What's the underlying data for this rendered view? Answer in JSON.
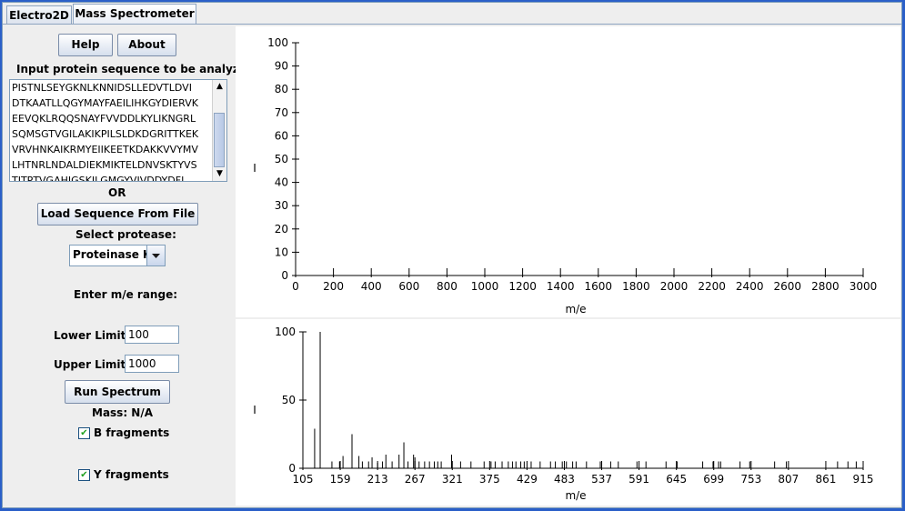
{
  "tabs": [
    {
      "label": "Electro2D",
      "active": false
    },
    {
      "label": "Mass Spectrometer",
      "active": true
    }
  ],
  "controls": {
    "help_label": "Help",
    "about_label": "About",
    "input_prompt": "Input protein sequence to be analyzed:",
    "sequence_lines": [
      "PISTNLSEYGKNLKNNIDSLLEDVTLDVI",
      "DTKAATLLQGYMAYFAEILIHKGYDIERVK",
      "EEVQKLRQQSNAYFVVDDLKYLIKNGRL",
      "SQMSGTVGILAKIKPILSLDKDGRITTKEK",
      "VRVHNKAIKRMYEIIKEETKDAKKVVYMV",
      "LHTNRLNDALDIEKMIKTELDNVSKTYVS",
      "TITPTVGAHIGSKILGMGYVIVDDYDFL"
    ],
    "or_label": "OR",
    "load_label": "Load Sequence From File",
    "protease_label": "Select protease:",
    "protease_value": "Proteinase K",
    "range_label": "Enter m/e range:",
    "lower_label": "Lower Limit:",
    "lower_value": "100",
    "upper_label": "Upper Limit:",
    "upper_value": "1000",
    "run_label": "Run Spectrum",
    "mass_label": "Mass: N/A",
    "b_label": "B fragments",
    "b_checked": true,
    "y_label": "Y fragments",
    "y_checked": true
  },
  "chart_data": [
    {
      "type": "bar",
      "title": "",
      "xlabel": "m/e",
      "ylabel": "I",
      "xlim": [
        0,
        3000
      ],
      "ylim": [
        0,
        100
      ],
      "x_ticks": [
        "0",
        "200",
        "400",
        "600",
        "800",
        "1000",
        "1200",
        "1400",
        "1600",
        "1800",
        "2000",
        "2200",
        "2400",
        "2600",
        "2800",
        "3000"
      ],
      "y_ticks": [
        "0",
        "10",
        "20",
        "30",
        "40",
        "50",
        "60",
        "70",
        "80",
        "90",
        "100"
      ],
      "peaks": []
    },
    {
      "type": "bar",
      "title": "",
      "xlabel": "m/e",
      "ylabel": "I",
      "xlim": [
        105,
        915
      ],
      "ylim": [
        0,
        100
      ],
      "x_ticks": [
        "105",
        "159",
        "213",
        "267",
        "321",
        "375",
        "429",
        "483",
        "537",
        "591",
        "645",
        "699",
        "753",
        "807",
        "861",
        "915"
      ],
      "y_ticks": [
        "0",
        "50",
        "100"
      ],
      "peaks": [
        {
          "x": 122,
          "y": 29
        },
        {
          "x": 130,
          "y": 100
        },
        {
          "x": 147,
          "y": 5
        },
        {
          "x": 158,
          "y": 5
        },
        {
          "x": 163,
          "y": 9
        },
        {
          "x": 176,
          "y": 25
        },
        {
          "x": 186,
          "y": 9
        },
        {
          "x": 191,
          "y": 5
        },
        {
          "x": 200,
          "y": 5
        },
        {
          "x": 205,
          "y": 8
        },
        {
          "x": 213,
          "y": 4
        },
        {
          "x": 220,
          "y": 5
        },
        {
          "x": 225,
          "y": 10
        },
        {
          "x": 234,
          "y": 5
        },
        {
          "x": 244,
          "y": 10
        },
        {
          "x": 251,
          "y": 19
        },
        {
          "x": 257,
          "y": 5
        },
        {
          "x": 265,
          "y": 10
        },
        {
          "x": 267,
          "y": 8
        },
        {
          "x": 273,
          "y": 5
        },
        {
          "x": 281,
          "y": 5
        },
        {
          "x": 288,
          "y": 5
        },
        {
          "x": 295,
          "y": 5
        },
        {
          "x": 300,
          "y": 5
        },
        {
          "x": 305,
          "y": 5
        },
        {
          "x": 320,
          "y": 10
        },
        {
          "x": 333,
          "y": 5
        },
        {
          "x": 348,
          "y": 5
        },
        {
          "x": 367,
          "y": 5
        },
        {
          "x": 377,
          "y": 5
        },
        {
          "x": 383,
          "y": 5
        },
        {
          "x": 393,
          "y": 5
        },
        {
          "x": 402,
          "y": 5
        },
        {
          "x": 408,
          "y": 5
        },
        {
          "x": 413,
          "y": 5
        },
        {
          "x": 420,
          "y": 5
        },
        {
          "x": 425,
          "y": 5
        },
        {
          "x": 435,
          "y": 5
        },
        {
          "x": 448,
          "y": 5
        },
        {
          "x": 463,
          "y": 5
        },
        {
          "x": 470,
          "y": 5
        },
        {
          "x": 480,
          "y": 5
        },
        {
          "x": 486,
          "y": 5
        },
        {
          "x": 495,
          "y": 5
        },
        {
          "x": 500,
          "y": 5
        },
        {
          "x": 515,
          "y": 5
        },
        {
          "x": 535,
          "y": 5
        },
        {
          "x": 550,
          "y": 5
        },
        {
          "x": 561,
          "y": 5
        },
        {
          "x": 588,
          "y": 5
        },
        {
          "x": 601,
          "y": 5
        },
        {
          "x": 630,
          "y": 5
        },
        {
          "x": 646,
          "y": 5
        },
        {
          "x": 683,
          "y": 5
        },
        {
          "x": 698,
          "y": 5
        },
        {
          "x": 706,
          "y": 5
        },
        {
          "x": 709,
          "y": 5
        },
        {
          "x": 737,
          "y": 5
        },
        {
          "x": 751,
          "y": 5
        },
        {
          "x": 787,
          "y": 5
        },
        {
          "x": 804,
          "y": 5
        },
        {
          "x": 878,
          "y": 5
        },
        {
          "x": 893,
          "y": 5
        },
        {
          "x": 905,
          "y": 5
        }
      ]
    }
  ]
}
